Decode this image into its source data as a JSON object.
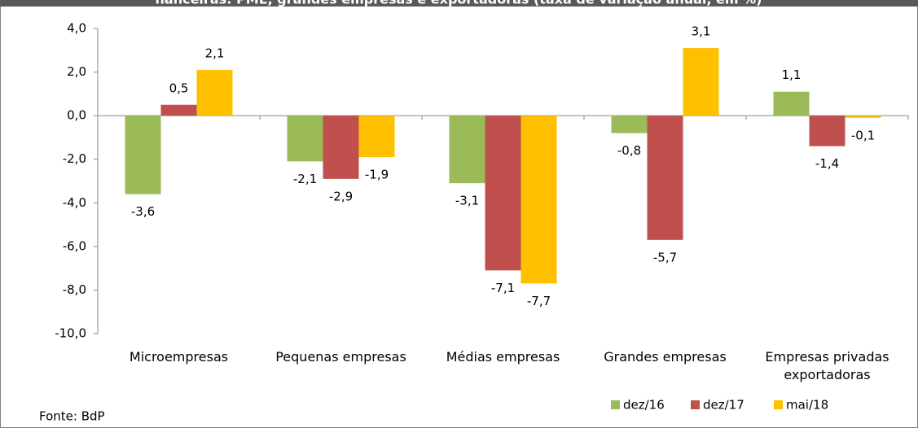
{
  "chart_data": {
    "type": "bar",
    "title": "nanceiras: PME, grandes empresas e exportadoras (taxa de variação anual, em %)",
    "source": "Fonte:  BdP",
    "categories": [
      "Microempresas",
      "Pequenas empresas",
      "Médias empresas",
      "Grandes empresas",
      "Empresas privadas exportadoras"
    ],
    "series": [
      {
        "name": "dez/16",
        "color": "#9bbb59",
        "values": [
          -3.6,
          -2.1,
          -3.1,
          -0.8,
          1.1
        ],
        "value_labels": [
          "-3,6",
          "-2,1",
          "-3,1",
          "-0,8",
          "1,1"
        ]
      },
      {
        "name": "dez/17",
        "color": "#c0504d",
        "values": [
          0.5,
          -2.9,
          -7.1,
          -5.7,
          -1.4
        ],
        "value_labels": [
          "0,5",
          "-2,9",
          "-7,1",
          "-5,7",
          "-1,4"
        ]
      },
      {
        "name": "mai/18",
        "color": "#ffc000",
        "values": [
          2.1,
          -1.9,
          -7.7,
          3.1,
          -0.1
        ],
        "value_labels": [
          "2,1",
          "-1,9",
          "-7,7",
          "3,1",
          "-0,1"
        ]
      }
    ],
    "ylim": [
      -10,
      4
    ],
    "yticks": [
      {
        "value": -10,
        "label": "-10,0"
      },
      {
        "value": -8,
        "label": "-8,0"
      },
      {
        "value": -6,
        "label": "-6,0"
      },
      {
        "value": -4,
        "label": "-4,0"
      },
      {
        "value": -2,
        "label": "-2,0"
      },
      {
        "value": 0,
        "label": "0,0"
      },
      {
        "value": 2,
        "label": "2,0"
      },
      {
        "value": 4,
        "label": "4,0"
      }
    ],
    "grid": false,
    "legend": "bottom"
  }
}
